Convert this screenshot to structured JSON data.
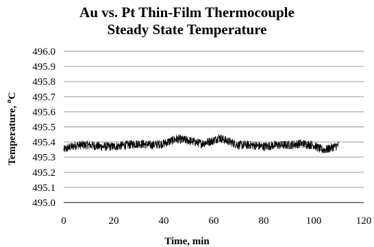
{
  "chart_data": {
    "type": "line",
    "title_line1": "Au vs. Pt Thin-Film Thermocouple",
    "title_line2": "Steady State Temperature",
    "xlabel": "Time, min",
    "ylabel": "Temperature, °C",
    "ylabel_main": "Temperature, ",
    "ylabel_unit_sup": "o",
    "ylabel_unit": "C",
    "xlim": [
      0,
      120
    ],
    "ylim": [
      495.0,
      496.0
    ],
    "x_ticks": [
      "0",
      "20",
      "40",
      "60",
      "80",
      "100",
      "120"
    ],
    "y_ticks": [
      "495.0",
      "495.1",
      "495.2",
      "495.3",
      "495.4",
      "495.5",
      "495.6",
      "495.7",
      "495.8",
      "495.9",
      "496.0"
    ],
    "grid": "horizontal",
    "legend": "none",
    "line_color": "#000000",
    "series": [
      {
        "x": [
          0,
          5,
          10,
          15,
          20,
          25,
          30,
          35,
          40,
          45,
          50,
          55,
          60,
          62,
          65,
          70,
          75,
          80,
          85,
          90,
          95,
          100,
          103,
          105,
          110
        ],
        "y": [
          495.35,
          495.38,
          495.38,
          495.37,
          495.37,
          495.38,
          495.39,
          495.38,
          495.39,
          495.42,
          495.41,
          495.39,
          495.41,
          495.43,
          495.41,
          495.38,
          495.38,
          495.37,
          495.38,
          495.38,
          495.39,
          495.38,
          495.35,
          495.35,
          495.38
        ],
        "noise_amplitude": 0.06
      }
    ]
  }
}
